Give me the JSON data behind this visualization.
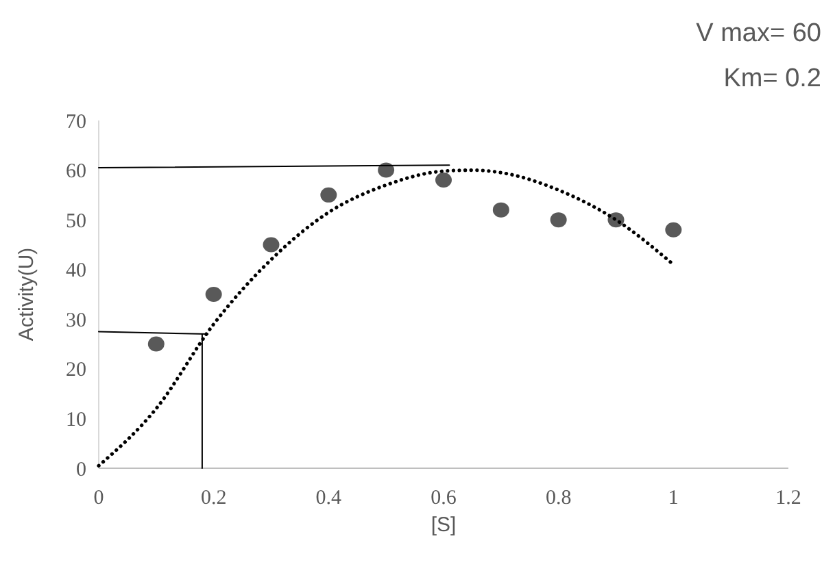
{
  "chart_data": {
    "type": "scatter",
    "xlabel": "[S]",
    "ylabel": "Activity(U)",
    "annotations": [
      "V max= 60",
      "Km= 0.2"
    ],
    "xlim": [
      0,
      1.2
    ],
    "ylim": [
      0,
      70
    ],
    "xticks": [
      0,
      0.2,
      0.4,
      0.6,
      0.8,
      1,
      1.2
    ],
    "yticks": [
      0,
      10,
      20,
      30,
      40,
      50,
      60,
      70
    ],
    "series": [
      {
        "color": "#595959",
        "marker": "circle",
        "x": [
          0.1,
          0.2,
          0.3,
          0.4,
          0.5,
          0.6,
          0.7,
          0.8,
          0.9,
          1.0
        ],
        "values": [
          25,
          35,
          45,
          55,
          60,
          58,
          52,
          50,
          50,
          48
        ]
      },
      {
        "type": "line",
        "color": "#000000",
        "line_style": "dotted",
        "x": [
          0,
          0.1,
          0.2,
          0.3,
          0.4,
          0.5,
          0.6,
          0.65,
          0.7,
          0.8,
          0.9,
          1.0
        ],
        "values": [
          0.5,
          12,
          29,
          42,
          51.5,
          57,
          59.8,
          60,
          59.5,
          56,
          50,
          41
        ]
      },
      {
        "type": "line",
        "color": "#000000",
        "line_style": "solid",
        "x": [
          0,
          0.61
        ],
        "values": [
          60.5,
          61
        ]
      },
      {
        "type": "line",
        "color": "#000000",
        "line_style": "solid",
        "x": [
          0,
          0.19
        ],
        "values": [
          27.5,
          27
        ]
      },
      {
        "type": "line",
        "color": "#000000",
        "line_style": "solid",
        "x": [
          0.18,
          0.18
        ],
        "values": [
          27,
          0
        ]
      }
    ]
  }
}
